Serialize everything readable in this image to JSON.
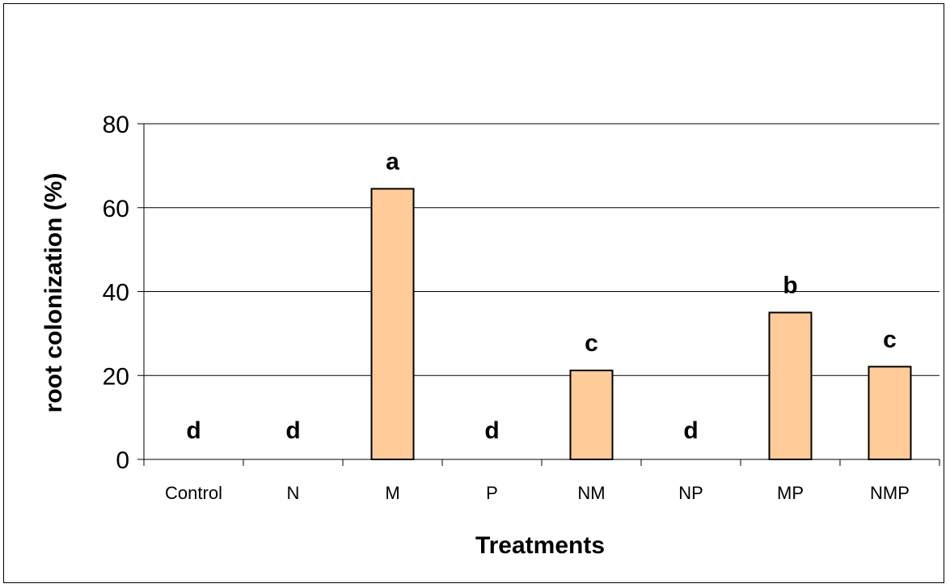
{
  "chart_data": {
    "type": "bar",
    "categories": [
      "Control",
      "N",
      "M",
      "P",
      "NM",
      "NP",
      "MP",
      "NMP"
    ],
    "values": [
      0,
      0,
      64.5,
      0,
      21.2,
      0,
      35.0,
      22.1
    ],
    "significance_letters": [
      "d",
      "d",
      "a",
      "d",
      "c",
      "d",
      "b",
      "c"
    ],
    "xlabel": "Treatments",
    "ylabel": "root colonization (%)",
    "ylim": [
      0,
      80
    ],
    "yticks": [
      0,
      20,
      40,
      60,
      80
    ],
    "grid": true,
    "legend": "none",
    "bar_color": "#FFCC99",
    "bar_edge_color": "#000000"
  }
}
